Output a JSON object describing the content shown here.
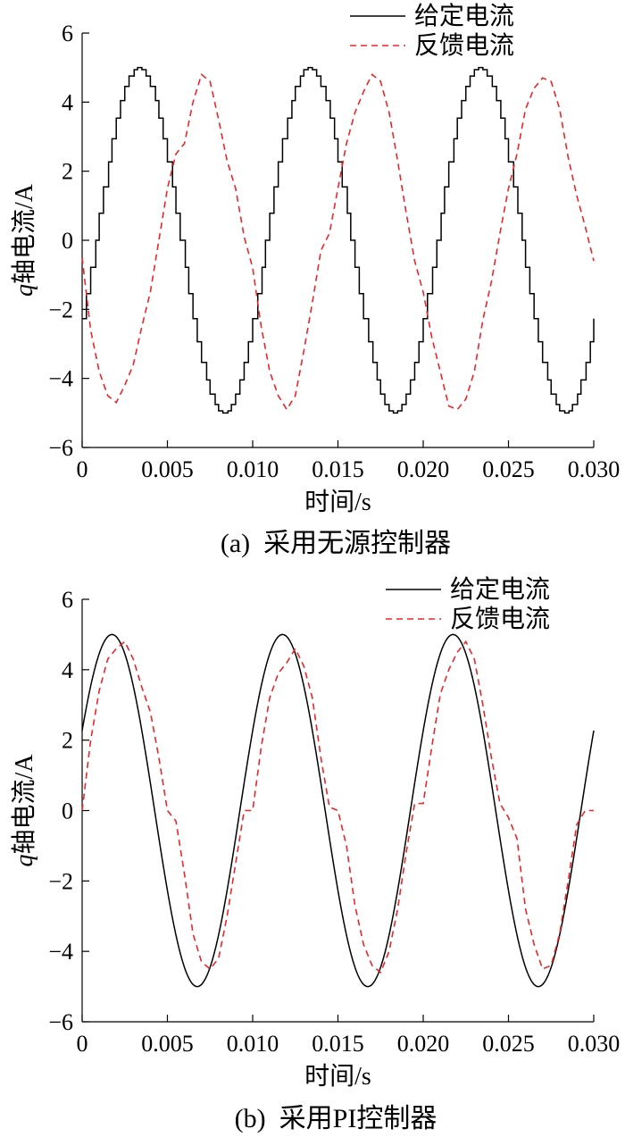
{
  "panels": [
    {
      "caption": "(a)  采用无源控制器"
    },
    {
      "caption": "(b)  采用PI控制器"
    }
  ],
  "chart_data": [
    {
      "type": "line",
      "ylabel_italic": "q",
      "ylabel": "轴电流/A",
      "xlabel": "时间/s",
      "xlim": [
        0,
        0.03
      ],
      "ylim": [
        -6,
        6
      ],
      "xticks": [
        0,
        0.005,
        0.01,
        0.015,
        0.02,
        0.025,
        0.03
      ],
      "xtick_labels": [
        "0",
        "0.005",
        "0.010",
        "0.015",
        "0.020",
        "0.025",
        "0.030"
      ],
      "yticks": [
        -6,
        -4,
        -2,
        0,
        2,
        4,
        6
      ],
      "ytick_labels": [
        "−6",
        "−4",
        "−2",
        "0",
        "2",
        "4",
        "6"
      ],
      "legend_position": "top-right",
      "series": [
        {
          "name": "给定电流",
          "style": "solid",
          "color": "#000000",
          "amplitude": 5,
          "frequency_hz": 100,
          "phase_deg": -27,
          "stepped": true
        },
        {
          "name": "反馈电流",
          "style": "dashed",
          "color": "#e8262b",
          "x": [
            0,
            0.0005,
            0.001,
            0.0015,
            0.002,
            0.0025,
            0.003,
            0.0035,
            0.004,
            0.0045,
            0.005,
            0.0055,
            0.006,
            0.0065,
            0.007,
            0.0075,
            0.008,
            0.0085,
            0.009,
            0.0095,
            0.01,
            0.0105,
            0.011,
            0.0115,
            0.012,
            0.0125,
            0.013,
            0.0135,
            0.014,
            0.0145,
            0.015,
            0.0155,
            0.016,
            0.0165,
            0.017,
            0.0175,
            0.018,
            0.0185,
            0.019,
            0.0195,
            0.02,
            0.0205,
            0.021,
            0.0215,
            0.022,
            0.0225,
            0.023,
            0.0235,
            0.024,
            0.0245,
            0.025,
            0.0255,
            0.026,
            0.0265,
            0.027,
            0.0275,
            0.028,
            0.0285,
            0.029,
            0.0295,
            0.03
          ],
          "values": [
            -0.5,
            -2.6,
            -3.8,
            -4.5,
            -4.7,
            -4.2,
            -3.6,
            -2.5,
            -1.5,
            0.0,
            1.5,
            2.5,
            2.8,
            4.0,
            4.8,
            4.6,
            3.5,
            2.3,
            1.5,
            0.1,
            -0.8,
            -2.5,
            -3.8,
            -4.5,
            -4.9,
            -4.5,
            -3.2,
            -1.8,
            -0.3,
            0.2,
            1.5,
            2.8,
            3.7,
            4.3,
            4.8,
            4.6,
            3.7,
            2.3,
            0.8,
            -0.6,
            -1.5,
            -2.8,
            -3.8,
            -4.8,
            -4.9,
            -4.6,
            -3.8,
            -2.3,
            -1.2,
            0.2,
            1.5,
            2.5,
            3.8,
            4.4,
            4.7,
            4.6,
            3.8,
            2.4,
            1.3,
            0.4,
            -0.6
          ]
        }
      ]
    },
    {
      "type": "line",
      "ylabel_italic": "q",
      "ylabel": "轴电流/A",
      "xlabel": "时间/s",
      "xlim": [
        0,
        0.03
      ],
      "ylim": [
        -6,
        6
      ],
      "xticks": [
        0,
        0.005,
        0.01,
        0.015,
        0.02,
        0.025,
        0.03
      ],
      "xtick_labels": [
        "0",
        "0.005",
        "0.010",
        "0.015",
        "0.020",
        "0.025",
        "0.030"
      ],
      "yticks": [
        -6,
        -4,
        -2,
        0,
        2,
        4,
        6
      ],
      "ytick_labels": [
        "−6",
        "−4",
        "−2",
        "0",
        "2",
        "4",
        "6"
      ],
      "legend_position": "top-right",
      "series": [
        {
          "name": "给定电流",
          "style": "solid",
          "color": "#000000",
          "amplitude": 5,
          "frequency_hz": 100,
          "phase_deg": 27,
          "stepped": false
        },
        {
          "name": "反馈电流",
          "style": "dashed",
          "color": "#e8262b",
          "x": [
            0,
            0.0005,
            0.001,
            0.0015,
            0.002,
            0.0025,
            0.003,
            0.0035,
            0.004,
            0.0045,
            0.005,
            0.0055,
            0.006,
            0.0065,
            0.007,
            0.0075,
            0.008,
            0.0085,
            0.009,
            0.0095,
            0.01,
            0.0105,
            0.011,
            0.0115,
            0.012,
            0.0125,
            0.013,
            0.0135,
            0.014,
            0.0145,
            0.015,
            0.0155,
            0.016,
            0.0165,
            0.017,
            0.0175,
            0.018,
            0.0185,
            0.019,
            0.0195,
            0.02,
            0.0205,
            0.021,
            0.0215,
            0.022,
            0.0225,
            0.023,
            0.0235,
            0.024,
            0.0245,
            0.025,
            0.0255,
            0.026,
            0.0265,
            0.027,
            0.0275,
            0.028,
            0.0285,
            0.029,
            0.0295,
            0.03
          ],
          "values": [
            0.0,
            2.0,
            3.4,
            4.3,
            4.6,
            4.8,
            4.3,
            3.5,
            2.8,
            1.5,
            0.0,
            -0.3,
            -1.8,
            -3.5,
            -4.3,
            -4.5,
            -4.2,
            -3.0,
            -1.5,
            0.0,
            0.0,
            1.8,
            3.2,
            3.9,
            4.2,
            4.6,
            4.1,
            3.2,
            1.5,
            0.1,
            0.0,
            -1.0,
            -2.7,
            -3.8,
            -4.4,
            -4.6,
            -4.0,
            -2.8,
            -1.2,
            0.2,
            0.2,
            1.8,
            3.3,
            4.0,
            4.5,
            4.8,
            4.3,
            3.0,
            1.5,
            0.2,
            -0.2,
            -0.8,
            -2.8,
            -3.8,
            -4.5,
            -4.4,
            -3.5,
            -2.0,
            -0.4,
            0.0,
            0.0
          ]
        }
      ]
    }
  ]
}
